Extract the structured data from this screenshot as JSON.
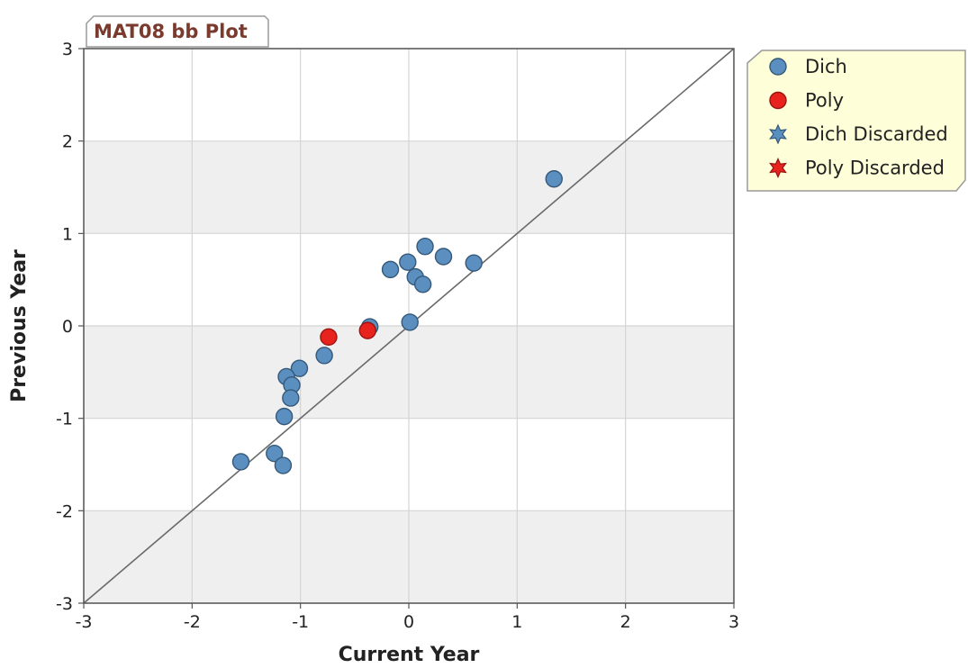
{
  "chart_data": {
    "type": "scatter",
    "title": "MAT08 bb Plot",
    "xlabel": "Current Year",
    "ylabel": "Previous Year",
    "xlim": [
      -3,
      3
    ],
    "ylim": [
      -3,
      3
    ],
    "x_ticks": [
      "-3",
      "-2",
      "-1",
      "0",
      "1",
      "2",
      "3"
    ],
    "y_ticks": [
      "-3",
      "-2",
      "-1",
      "0",
      "1",
      "2",
      "3"
    ],
    "grid": true,
    "reference_line": "y = x",
    "legend": {
      "placement": "top-right, outside plot",
      "entries": [
        {
          "label": "Dich",
          "marker": "circle",
          "color": "#5b8fc0"
        },
        {
          "label": "Poly",
          "marker": "circle",
          "color": "#e8231e"
        },
        {
          "label": "Dich Discarded",
          "marker": "star",
          "color": "#5b8fc0"
        },
        {
          "label": "Poly Discarded",
          "marker": "star",
          "color": "#e8231e"
        }
      ]
    },
    "series": [
      {
        "name": "Dich",
        "color": "#5b8fc0",
        "points": [
          {
            "x": 1.34,
            "y": 1.59
          },
          {
            "x": 0.15,
            "y": 0.86
          },
          {
            "x": 0.32,
            "y": 0.75
          },
          {
            "x": 0.6,
            "y": 0.68
          },
          {
            "x": -0.01,
            "y": 0.69
          },
          {
            "x": -0.17,
            "y": 0.61
          },
          {
            "x": 0.06,
            "y": 0.53
          },
          {
            "x": 0.13,
            "y": 0.45
          },
          {
            "x": -0.36,
            "y": -0.01
          },
          {
            "x": 0.01,
            "y": 0.04
          },
          {
            "x": -0.78,
            "y": -0.32
          },
          {
            "x": -1.01,
            "y": -0.46
          },
          {
            "x": -1.13,
            "y": -0.55
          },
          {
            "x": -1.08,
            "y": -0.64
          },
          {
            "x": -1.09,
            "y": -0.78
          },
          {
            "x": -1.15,
            "y": -0.98
          },
          {
            "x": -1.55,
            "y": -1.47
          },
          {
            "x": -1.24,
            "y": -1.38
          },
          {
            "x": -1.16,
            "y": -1.51
          }
        ]
      },
      {
        "name": "Poly",
        "color": "#e8231e",
        "points": [
          {
            "x": -0.74,
            "y": -0.12
          },
          {
            "x": -0.38,
            "y": -0.05
          }
        ]
      },
      {
        "name": "Dich Discarded",
        "color": "#5b8fc0",
        "points": []
      },
      {
        "name": "Poly Discarded",
        "color": "#e8231e",
        "points": []
      }
    ],
    "colors": {
      "band": "#efefef",
      "grid": "#d4d4d4",
      "axis": "#555555",
      "legend_bg": "#fefed8",
      "title_color": "#7a3b2e"
    }
  }
}
